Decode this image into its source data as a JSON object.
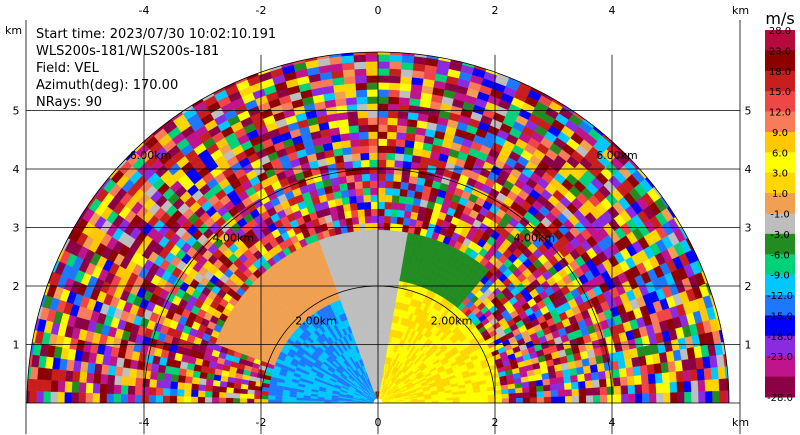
{
  "chart_data": {
    "type": "heatmap",
    "subtype": "radar-ppi-sector",
    "title": "",
    "xlabel": "km",
    "ylabel": "km",
    "xlim": [
      -6,
      6
    ],
    "ylim": [
      0,
      6
    ],
    "x_ticks": [
      -4,
      -2,
      0,
      2,
      4
    ],
    "y_ticks": [
      1,
      2,
      3,
      4,
      5
    ],
    "grid": true,
    "range_rings": [
      {
        "radius_km": 2,
        "label": "2.00km"
      },
      {
        "radius_km": 4,
        "label": "4.00km"
      },
      {
        "radius_km": 6,
        "label": "6.00km"
      }
    ],
    "info": {
      "start_time": "Start time: 2023/07/30 10:02:10.191",
      "station": "WLS200s-181/WLS200s-181",
      "field": "Field: VEL",
      "azimuth": "Azimuth(deg): 170.00",
      "nrays": "NRays: 90"
    },
    "colorbar": {
      "unit": "m/s",
      "levels": [
        "28.0",
        "23.0",
        "18.0",
        "15.0",
        "12.0",
        "9.0",
        "6.0",
        "3.0",
        "1.0",
        "-1.0",
        "-3.0",
        "-6.0",
        "-9.0",
        "-12.0",
        "-15.0",
        "-18.0",
        "-23.0",
        "-28.0"
      ],
      "colors": [
        "#b40a3c",
        "#8c0000",
        "#c81e1e",
        "#f04646",
        "#f87c5a",
        "#ffc800",
        "#ffff00",
        "#ffd700",
        "#f0a050",
        "#bebebe",
        "#228b22",
        "#00d27a",
        "#00c8ff",
        "#1e78ff",
        "#0000ff",
        "#8a2be2",
        "#c0148c",
        "#8c0046"
      ]
    },
    "regions": [
      {
        "name": "near-field receding (yellow)",
        "r_km": [
          0.1,
          2.1
        ],
        "az_deg_from_north": [
          10,
          90
        ],
        "value_ms": 6.0
      },
      {
        "name": "approaching (cyan/blue)",
        "r_km": [
          0.1,
          1.9
        ],
        "az_deg_from_north": [
          -90,
          -20
        ],
        "value_ms": -9.0
      },
      {
        "name": "near-zero (gray)",
        "r_km": [
          0.2,
          3.2
        ],
        "az_deg_from_north": [
          -20,
          10
        ],
        "value_ms": 0.0
      },
      {
        "name": "weak approaching (green)",
        "r_km": [
          1.0,
          3.0
        ],
        "az_deg_from_north": [
          5,
          40
        ],
        "value_ms": -2.0
      },
      {
        "name": "weak receding (orange)",
        "r_km": [
          1.2,
          3.2
        ],
        "az_deg_from_north": [
          -70,
          -10
        ],
        "value_ms": 2.0
      }
    ],
    "noise_beyond_km": 3.0
  }
}
